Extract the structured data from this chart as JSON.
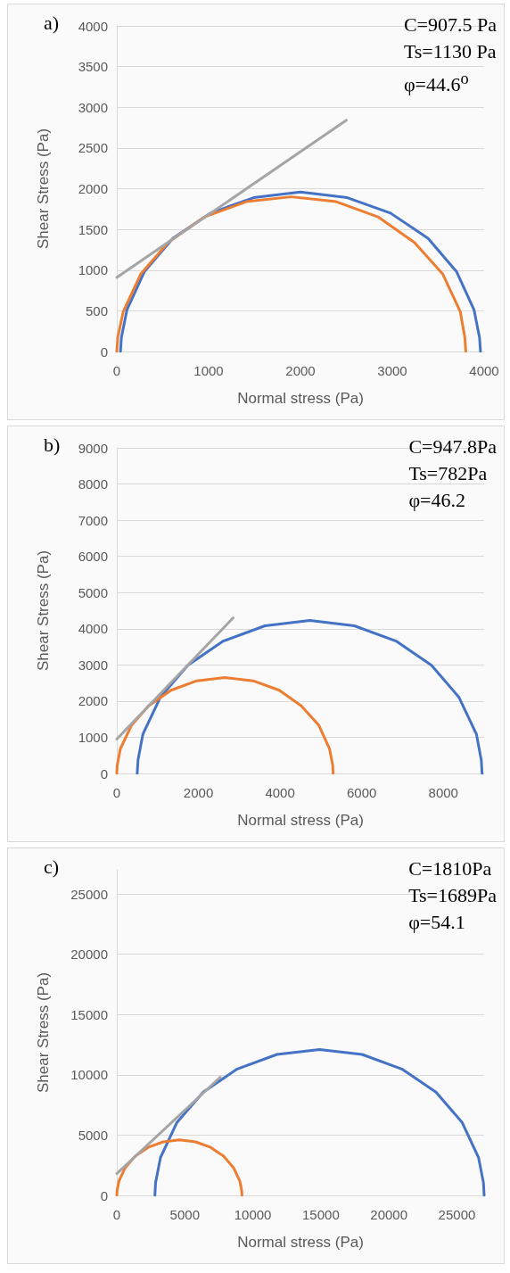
{
  "chart_data": [
    {
      "type": "line",
      "xlabel": "Normal stress (Pa)",
      "ylabel": "Shear Stress (Pa)",
      "annotations": [
        "a)",
        "C=907.5 Pa",
        "Ts=1130 Pa",
        "φ=44.6$^{o}$"
      ],
      "xlim": [
        0,
        4000
      ],
      "xticks": [
        0,
        1000,
        2000,
        3000,
        4000
      ],
      "ylim": [
        0,
        4000
      ],
      "yticks": [
        0,
        500,
        1000,
        1500,
        2000,
        2500,
        3000,
        3500,
        4000
      ],
      "grid": "y",
      "marker": "none",
      "line_style": "solid",
      "series": [
        {
          "color": "#4472c4",
          "x": [
            40,
            50,
            110,
            300,
            610,
            1020,
            1490,
            2000,
            2510,
            2980,
            3390,
            3700,
            3890,
            3950,
            3960
          ],
          "values": [
            0,
            170,
            510,
            980,
            1390,
            1700,
            1890,
            1960,
            1890,
            1700,
            1390,
            980,
            510,
            170,
            0
          ]
        },
        {
          "color": "#ed7d31",
          "x": [
            0,
            10,
            70,
            260,
            560,
            950,
            1410,
            1900,
            2390,
            2850,
            3240,
            3550,
            3740,
            3790,
            3800
          ],
          "values": [
            0,
            170,
            490,
            950,
            1340,
            1650,
            1840,
            1900,
            1840,
            1650,
            1340,
            950,
            490,
            170,
            0
          ]
        },
        {
          "color": "#a5a5a5",
          "x": [
            0,
            2500
          ],
          "values": [
            910,
            2840
          ]
        }
      ]
    },
    {
      "type": "line",
      "xlabel": "Normal stress (Pa)",
      "ylabel": "Shear Stress (Pa)",
      "annotations": [
        "b)",
        "C=947.8Pa",
        "Ts=782Pa",
        "φ=46.2"
      ],
      "xlim": [
        0,
        9000
      ],
      "xticks": [
        0,
        2000,
        4000,
        6000,
        8000
      ],
      "ylim": [
        0,
        9000
      ],
      "yticks": [
        0,
        1000,
        2000,
        3000,
        4000,
        5000,
        6000,
        7000,
        8000,
        9000
      ],
      "grid": "y",
      "marker": "none",
      "line_style": "solid",
      "series": [
        {
          "color": "#4472c4",
          "x": [
            500,
            520,
            640,
            1070,
            1740,
            2610,
            3630,
            4730,
            5820,
            6840,
            7710,
            8380,
            8810,
            8930,
            8950
          ],
          "values": [
            0,
            370,
            1090,
            2110,
            2990,
            3660,
            4080,
            4230,
            4080,
            3660,
            2990,
            2110,
            1090,
            370,
            0
          ]
        },
        {
          "color": "#ed7d31",
          "x": [
            0,
            10,
            90,
            360,
            780,
            1330,
            1960,
            2650,
            3340,
            3980,
            4520,
            4950,
            5210,
            5290,
            5300
          ],
          "values": [
            0,
            230,
            690,
            1330,
            1870,
            2300,
            2560,
            2650,
            2560,
            2300,
            1870,
            1330,
            690,
            230,
            0
          ]
        },
        {
          "color": "#a5a5a5",
          "x": [
            0,
            2850
          ],
          "values": [
            950,
            4300
          ]
        }
      ]
    },
    {
      "type": "line",
      "xlabel": "Normal stress (Pa)",
      "ylabel": "Shear Stress (Pa)",
      "annotations": [
        "c)",
        "C=1810Pa",
        "Ts=1689Pa",
        "φ=54.1"
      ],
      "xlim": [
        0,
        27000
      ],
      "xticks": [
        0,
        5000,
        10000,
        15000,
        20000,
        25000
      ],
      "ylim": [
        0,
        27000
      ],
      "yticks": [
        0,
        5000,
        10000,
        15000,
        20000,
        25000
      ],
      "grid": "y",
      "marker": "none",
      "line_style": "solid",
      "series": [
        {
          "color": "#4472c4",
          "x": [
            2800,
            2850,
            3210,
            4420,
            6350,
            8850,
            11770,
            14900,
            18030,
            20950,
            23460,
            25380,
            26590,
            26950,
            27000
          ],
          "values": [
            0,
            1050,
            3130,
            6050,
            8560,
            10480,
            11690,
            12100,
            11690,
            10480,
            8560,
            6050,
            3130,
            1050,
            0
          ]
        },
        {
          "color": "#ed7d31",
          "x": [
            0,
            20,
            160,
            620,
            1350,
            2300,
            3410,
            4600,
            5790,
            6900,
            7850,
            8580,
            9040,
            9180,
            9200
          ],
          "values": [
            0,
            400,
            1190,
            2300,
            3250,
            3980,
            4440,
            4600,
            4440,
            3980,
            3250,
            2300,
            1190,
            400,
            0
          ]
        },
        {
          "color": "#a5a5a5",
          "x": [
            0,
            7600
          ],
          "values": [
            1810,
            9800
          ]
        }
      ]
    }
  ]
}
